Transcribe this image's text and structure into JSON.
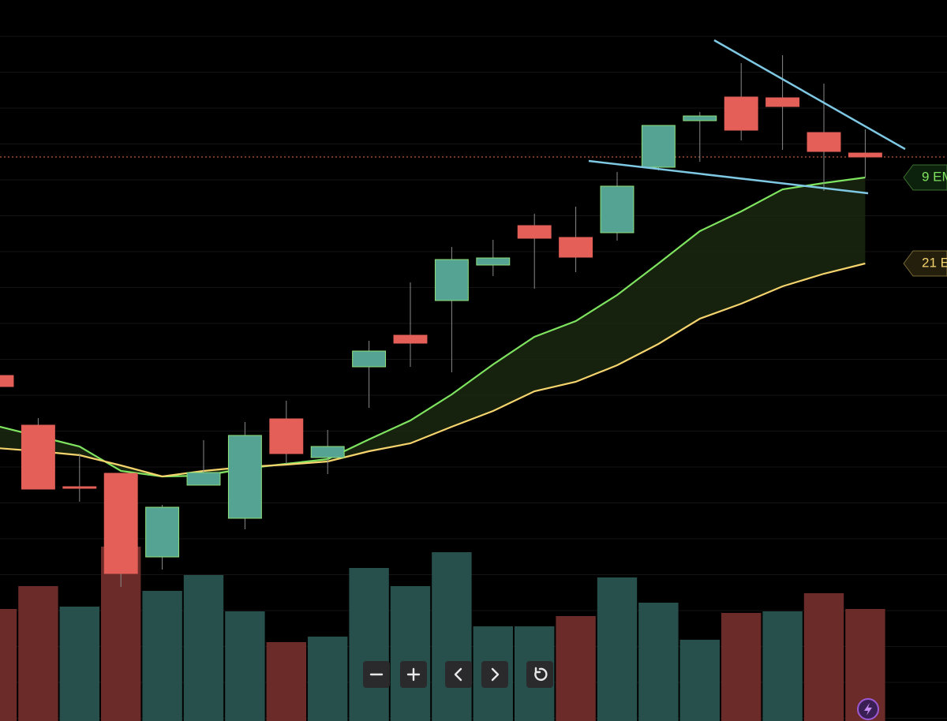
{
  "chart_data": {
    "type": "candlestick",
    "ylim": [
      0,
      914
    ],
    "grid": true,
    "up_color": "#55a393",
    "down_color": "#e35f57",
    "candles": [
      {
        "open": 438,
        "high": 438,
        "low": 424,
        "close": 424
      },
      {
        "open": 375,
        "high": 384,
        "low": 294,
        "close": 294
      },
      {
        "open": 297,
        "high": 339,
        "low": 278,
        "close": 295
      },
      {
        "open": 314,
        "high": 314,
        "low": 170,
        "close": 187
      },
      {
        "open": 208,
        "high": 274,
        "low": 192,
        "close": 271
      },
      {
        "open": 299,
        "high": 356,
        "low": 299,
        "close": 315
      },
      {
        "open": 257,
        "high": 379,
        "low": 243,
        "close": 362
      },
      {
        "open": 383,
        "high": 406,
        "low": 326,
        "close": 339
      },
      {
        "open": 334,
        "high": 369,
        "low": 313,
        "close": 348
      },
      {
        "open": 449,
        "high": 482,
        "low": 397,
        "close": 469
      },
      {
        "open": 489,
        "high": 556,
        "low": 449,
        "close": 479
      },
      {
        "open": 533,
        "high": 601,
        "low": 442,
        "close": 585
      },
      {
        "open": 578,
        "high": 610,
        "low": 564,
        "close": 587
      },
      {
        "open": 628,
        "high": 643,
        "low": 548,
        "close": 612
      },
      {
        "open": 613,
        "high": 652,
        "low": 569,
        "close": 588
      },
      {
        "open": 619,
        "high": 696,
        "low": 609,
        "close": 678
      },
      {
        "open": 702,
        "high": 755,
        "low": 698,
        "close": 755
      },
      {
        "open": 761,
        "high": 772,
        "low": 709,
        "close": 767
      },
      {
        "open": 791,
        "high": 834,
        "low": 736,
        "close": 749
      },
      {
        "open": 790,
        "high": 844,
        "low": 724,
        "close": 779
      },
      {
        "open": 746,
        "high": 808,
        "low": 672,
        "close": 722
      },
      {
        "open": 720,
        "high": 750,
        "low": 689,
        "close": 715
      }
    ],
    "volume": {
      "values": [
        142,
        171,
        145,
        221,
        165,
        185,
        139,
        100,
        107,
        194,
        171,
        214,
        120,
        120,
        133,
        182,
        150,
        103,
        137,
        139,
        162,
        142
      ],
      "colors": [
        "#6b2b28",
        "#6b2b28",
        "#27504d",
        "#6b2b28",
        "#27504d",
        "#27504d",
        "#27504d",
        "#6b2b28",
        "#27504d",
        "#27504d",
        "#27504d",
        "#27504d",
        "#27504d",
        "#27504d",
        "#6b2b28",
        "#27504d",
        "#27504d",
        "#27504d",
        "#6b2b28",
        "#27504d",
        "#6b2b28",
        "#6b2b28"
      ]
    },
    "series": [
      {
        "name": "9 EM",
        "color": "#7ee35f",
        "values": [
          374,
          361,
          348,
          317,
          310,
          311,
          320,
          326,
          332,
          357,
          381,
          414,
          452,
          487,
          507,
          540,
          580,
          621,
          646,
          674,
          682,
          689
        ]
      },
      {
        "name": "21 E",
        "color": "#f5d46e",
        "values": [
          346,
          342,
          337,
          324,
          310,
          317,
          322,
          325,
          329,
          342,
          352,
          373,
          393,
          418,
          430,
          451,
          478,
          510,
          529,
          551,
          567,
          580
        ]
      }
    ]
  }
}
